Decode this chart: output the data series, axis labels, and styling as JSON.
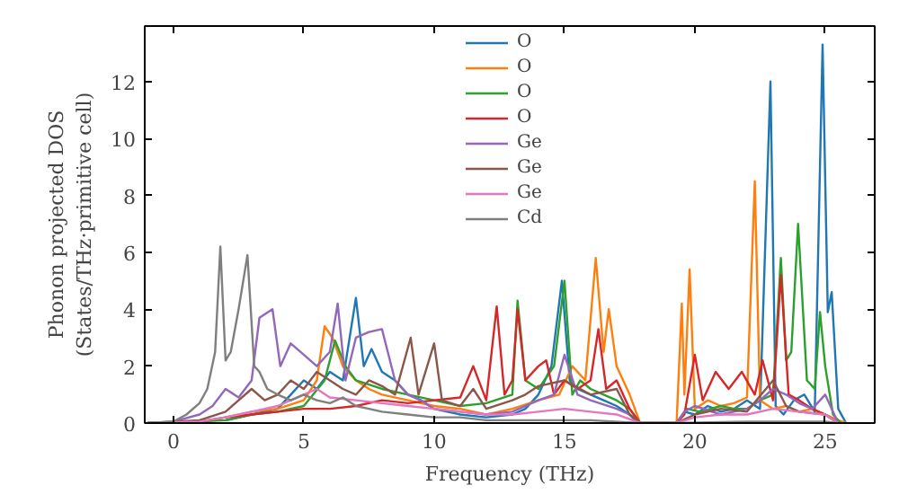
{
  "chart_data": {
    "type": "line",
    "xlabel": "Frequency (THz)",
    "ylabel": "Phonon projected DOS\n(States/THz·primitive cell)",
    "xlim": [
      -1.1,
      26.9
    ],
    "ylim": [
      0,
      13.95
    ],
    "xticks": [
      0,
      5,
      10,
      15,
      20,
      25
    ],
    "yticks": [
      0,
      2,
      4,
      6,
      8,
      10,
      12
    ],
    "grid": false,
    "legend": "top",
    "marker": "none",
    "line_style": "solid",
    "series": [
      {
        "name": "O",
        "color": "#1f77b4",
        "x": [
          2,
          3,
          4,
          4.5,
          5,
          5.5,
          6,
          6.5,
          7,
          7.3,
          7.6,
          8,
          8.5,
          9,
          9.5,
          10,
          10.5,
          11,
          12,
          13,
          13.5,
          14,
          14.5,
          14.9,
          15.2,
          15.5,
          16,
          16.5,
          17,
          17.5,
          17.8,
          19.3,
          19.6,
          20,
          20.5,
          21,
          21.5,
          22,
          22.5,
          22.9,
          23.1,
          23.4,
          23.8,
          24.2,
          24.6,
          24.9,
          25.1,
          25.25,
          25.5,
          25.8
        ],
        "values": [
          0.1,
          0.3,
          0.5,
          1.0,
          1.5,
          1.2,
          1.8,
          1.5,
          4.4,
          2.0,
          2.6,
          1.8,
          1.5,
          1.0,
          0.8,
          0.5,
          0.4,
          0.3,
          0.2,
          0.3,
          0.5,
          1.0,
          2.0,
          5.0,
          1.5,
          1.2,
          1.0,
          0.8,
          0.6,
          0.3,
          0,
          0,
          0.4,
          0.3,
          0.6,
          0.4,
          0.5,
          0.8,
          0.5,
          12.0,
          0.6,
          0.3,
          0.8,
          1.0,
          0.4,
          13.3,
          3.9,
          4.6,
          0.5,
          0
        ]
      },
      {
        "name": "O",
        "color": "#ff7f0e",
        "x": [
          2,
          3,
          4,
          5,
          5.5,
          5.8,
          6.1,
          6.5,
          7,
          7.5,
          8,
          9,
          10,
          11,
          12,
          13,
          14,
          14.8,
          15.3,
          15.8,
          16.2,
          16.5,
          16.7,
          17,
          17.5,
          17.9,
          19.3,
          19.5,
          19.6,
          19.8,
          20,
          20.5,
          21,
          21.5,
          22,
          22.3,
          22.5,
          23,
          23.5,
          24,
          24.5,
          25,
          25.5,
          25.8
        ],
        "values": [
          0.2,
          0.4,
          0.5,
          0.8,
          1.5,
          3.4,
          3.0,
          2.0,
          1.5,
          1.2,
          1.0,
          0.8,
          0.6,
          0.5,
          0.3,
          0.5,
          0.8,
          1.0,
          2.0,
          1.5,
          5.8,
          2.5,
          4.0,
          2.0,
          1.0,
          0,
          0,
          4.2,
          1.0,
          5.4,
          0.5,
          0.8,
          0.6,
          0.7,
          0.9,
          8.5,
          0.8,
          0.5,
          0.6,
          0.4,
          0.5,
          0.3,
          0.1,
          0
        ]
      },
      {
        "name": "O",
        "color": "#2ca02c",
        "x": [
          -1,
          1,
          2,
          3,
          4,
          5,
          5.8,
          6.2,
          6.6,
          7,
          8,
          9,
          10,
          11,
          12,
          13,
          13.2,
          13.5,
          14,
          14.6,
          15,
          15.3,
          15.6,
          16,
          16.5,
          17,
          17.5,
          17.9,
          19.3,
          19.7,
          20.2,
          21,
          21.5,
          22,
          22.5,
          23,
          23.3,
          23.5,
          23.7,
          23.96,
          24.3,
          24.6,
          24.8,
          25,
          25.3,
          25.6
        ],
        "values": [
          0,
          0.05,
          0.1,
          0.3,
          0.4,
          0.6,
          1.5,
          2.9,
          2.0,
          1.5,
          1.2,
          1.0,
          0.8,
          0.6,
          0.7,
          1.0,
          4.3,
          1.5,
          1.2,
          2.0,
          5.0,
          1.0,
          1.5,
          1.2,
          1.0,
          0.8,
          0.5,
          0,
          0,
          0.5,
          0.4,
          0.6,
          0.5,
          0.5,
          0.8,
          1.0,
          5.8,
          2.2,
          2.5,
          7.0,
          1.5,
          1.2,
          3.9,
          2.0,
          0.3,
          0
        ]
      },
      {
        "name": "O",
        "color": "#d62728",
        "x": [
          -1,
          1,
          2,
          3,
          4,
          5,
          6,
          7,
          8,
          9,
          10,
          11,
          11.5,
          12,
          12.4,
          12.7,
          13,
          13.2,
          13.5,
          14,
          14.3,
          14.6,
          15,
          15.5,
          16,
          16.3,
          16.6,
          17,
          17.5,
          17.9,
          19.3,
          19.6,
          20,
          20.3,
          20.8,
          21.3,
          21.8,
          22.3,
          22.6,
          23,
          23.3,
          23.6,
          24,
          24.5,
          25,
          25.5
        ],
        "values": [
          0,
          0.05,
          0.2,
          0.3,
          0.4,
          0.5,
          0.5,
          0.6,
          0.8,
          0.7,
          0.8,
          0.9,
          2.0,
          0.8,
          4.1,
          1.0,
          1.5,
          4.0,
          1.5,
          2.0,
          2.2,
          1.0,
          1.5,
          1.2,
          1.5,
          3.3,
          1.2,
          1.5,
          0.5,
          0,
          0,
          0.3,
          2.4,
          0.8,
          1.8,
          1.2,
          1.8,
          1.0,
          2.2,
          0.8,
          5.2,
          1.0,
          0.8,
          0.5,
          0.3,
          0
        ]
      },
      {
        "name": "Ge",
        "color": "#9467bd",
        "x": [
          -1,
          0,
          1,
          1.5,
          2,
          2.5,
          3,
          3.3,
          3.8,
          4.1,
          4.5,
          5,
          5.5,
          6,
          6.3,
          6.6,
          7,
          7.5,
          8,
          8.5,
          9,
          9.5,
          10,
          11,
          12,
          13,
          14,
          14.6,
          15,
          15.5,
          16,
          17,
          17.5,
          17.9,
          19.3,
          19.6,
          20,
          21,
          22,
          22.5,
          23,
          23.5,
          24,
          24.5,
          25,
          25.5
        ],
        "values": [
          0,
          0.05,
          0.3,
          0.6,
          1.2,
          0.9,
          1.5,
          3.7,
          4.0,
          2.0,
          2.8,
          2.4,
          2.0,
          2.5,
          4.2,
          1.5,
          3.0,
          3.2,
          3.3,
          1.5,
          1.0,
          0.8,
          0.5,
          0.4,
          0.3,
          0.4,
          0.8,
          1.0,
          2.4,
          1.0,
          0.8,
          0.5,
          0.3,
          0,
          0,
          0.4,
          0.6,
          0.3,
          0.5,
          0.8,
          1.2,
          1.0,
          0.7,
          0.5,
          1.0,
          0
        ]
      },
      {
        "name": "Ge",
        "color": "#8c564b",
        "x": [
          -1,
          1,
          2,
          2.5,
          3,
          3.5,
          4,
          4.5,
          5,
          5.5,
          6,
          6.5,
          7,
          7.5,
          8,
          8.5,
          9.1,
          9.4,
          10,
          10.3,
          11,
          11.5,
          12,
          13,
          13.5,
          14,
          15,
          16,
          17,
          17.5,
          17.9,
          19.3,
          20,
          21,
          22,
          23,
          23.5,
          24,
          25,
          25.5
        ],
        "values": [
          0,
          0.1,
          0.4,
          0.8,
          1.2,
          0.8,
          1.0,
          1.5,
          1.2,
          1.8,
          1.5,
          1.2,
          1.0,
          1.5,
          1.3,
          1.0,
          3.0,
          1.0,
          2.8,
          0.8,
          0.6,
          1.2,
          0.5,
          0.8,
          1.0,
          1.3,
          1.5,
          1.0,
          1.2,
          0.3,
          0,
          0,
          0.3,
          0.5,
          0.4,
          1.5,
          0.6,
          0.4,
          0.3,
          0
        ]
      },
      {
        "name": "Ge",
        "color": "#e377c2",
        "x": [
          -1,
          1,
          2,
          3,
          4,
          5,
          5.5,
          6,
          7,
          8,
          9,
          10,
          11,
          12,
          13,
          14,
          15,
          16,
          17,
          17.9,
          19.3,
          20,
          21,
          22,
          23,
          24,
          25,
          25.5
        ],
        "values": [
          0,
          0.05,
          0.2,
          0.4,
          0.6,
          1.0,
          1.2,
          0.9,
          0.8,
          0.7,
          0.6,
          0.5,
          0.4,
          0.3,
          0.3,
          0.4,
          0.5,
          0.4,
          0.3,
          0,
          0,
          0.2,
          0.3,
          0.3,
          0.5,
          0.4,
          0.3,
          0
        ]
      },
      {
        "name": "Cd",
        "color": "#7f7f7f",
        "x": [
          -1,
          0,
          0.5,
          1,
          1.3,
          1.6,
          1.8,
          2.0,
          2.2,
          2.5,
          2.84,
          3.1,
          3.3,
          3.6,
          4,
          4.5,
          5,
          5.5,
          6,
          6.5,
          7,
          7.5,
          8,
          9,
          10,
          11,
          12,
          14,
          16,
          17.9,
          19.3,
          22,
          25,
          25.5
        ],
        "values": [
          0,
          0.05,
          0.3,
          0.7,
          1.2,
          2.5,
          6.2,
          2.2,
          2.5,
          4.0,
          5.9,
          2.0,
          1.8,
          1.2,
          1.0,
          0.8,
          1.0,
          0.8,
          0.7,
          0.9,
          0.6,
          0.5,
          0.4,
          0.3,
          0.2,
          0.2,
          0.1,
          0.1,
          0.1,
          0,
          0,
          0.05,
          0.05,
          0
        ]
      }
    ]
  }
}
